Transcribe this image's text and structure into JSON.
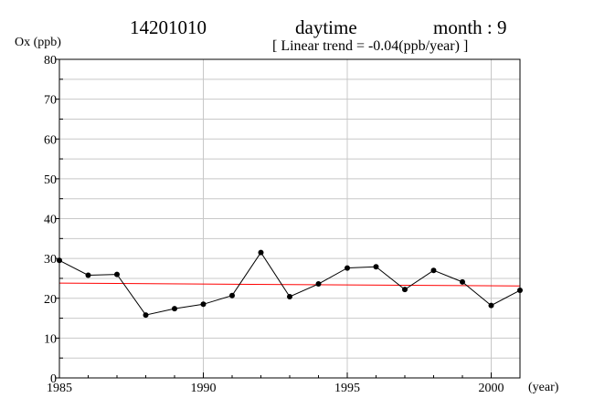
{
  "header": {
    "station": "14201010",
    "period": "daytime",
    "month": "month : 9",
    "trend_label": "[ Linear trend = -0.04(ppb/year) ]"
  },
  "chart_data": {
    "type": "line",
    "ylabel": "Ox (ppb)",
    "xlabel": "(year)",
    "xlim": [
      1985,
      2001
    ],
    "ylim": [
      0,
      80
    ],
    "x_ticks": [
      1985,
      1990,
      1995,
      2000
    ],
    "y_ticks": [
      0,
      10,
      20,
      30,
      40,
      50,
      60,
      70,
      80
    ],
    "grid": true,
    "series": [
      {
        "color": "#000000",
        "markers": true,
        "x": [
          1985,
          1986,
          1987,
          1988,
          1989,
          1990,
          1991,
          1992,
          1993,
          1994,
          1995,
          1996,
          1997,
          1998,
          1999,
          2000,
          2001
        ],
        "y": [
          29.5,
          25.8,
          26.0,
          15.8,
          17.4,
          18.5,
          20.7,
          31.5,
          20.4,
          23.6,
          27.6,
          27.9,
          22.2,
          27.0,
          24.1,
          18.2,
          22.0
        ]
      }
    ],
    "trend_line": {
      "color": "#ff0000",
      "x": [
        1985,
        2001
      ],
      "y": [
        23.8,
        23.1
      ]
    }
  }
}
